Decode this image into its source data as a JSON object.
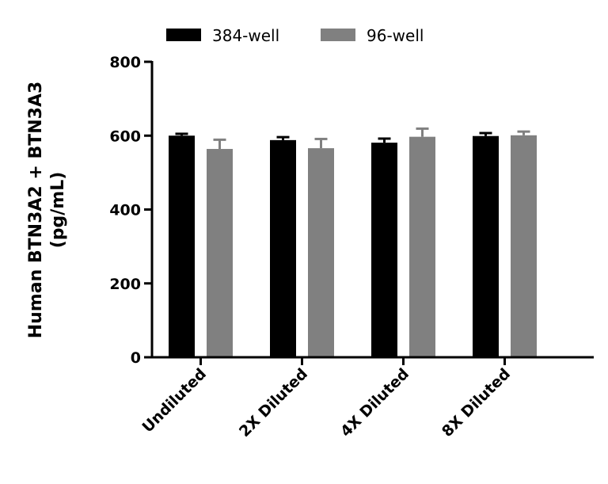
{
  "chart_data": {
    "type": "bar",
    "title": "",
    "xlabel": "",
    "ylabel_lines": [
      "Human BTN3A2 + BTN3A3",
      "(pg/mL)"
    ],
    "ylim": [
      0,
      800
    ],
    "yticks": [
      0,
      200,
      400,
      600,
      800
    ],
    "ytick_labels": [
      "0",
      "200",
      "400",
      "600",
      "800"
    ],
    "categories": [
      "Undiluted",
      "2X Diluted",
      "4X Diluted",
      "8X Diluted"
    ],
    "legend_placement": "top",
    "grid": false,
    "series": [
      {
        "name": "384-well",
        "color": "#000000",
        "values": [
          600,
          588,
          581,
          599
        ],
        "errors": [
          5,
          8,
          11,
          8
        ]
      },
      {
        "name": "96-well",
        "color": "#808080",
        "values": [
          564,
          566,
          597,
          601
        ],
        "errors": [
          25,
          25,
          22,
          10
        ]
      }
    ]
  }
}
